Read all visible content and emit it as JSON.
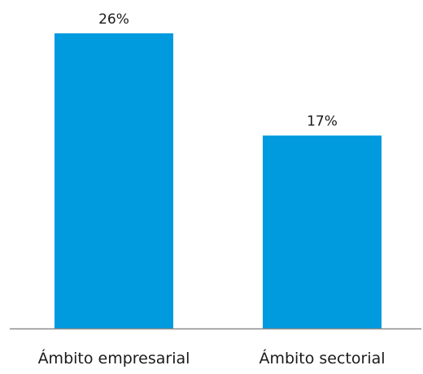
{
  "chart_data": {
    "type": "bar",
    "categories": [
      "Ámbito empresarial",
      "Ámbito sectorial"
    ],
    "values": [
      26,
      17
    ],
    "value_labels": [
      "26%",
      "17%"
    ],
    "ylim": [
      0,
      26
    ],
    "grid": false,
    "legend": "none",
    "bar_color": "#009ADF",
    "axis_color": "#8C8C8C"
  }
}
